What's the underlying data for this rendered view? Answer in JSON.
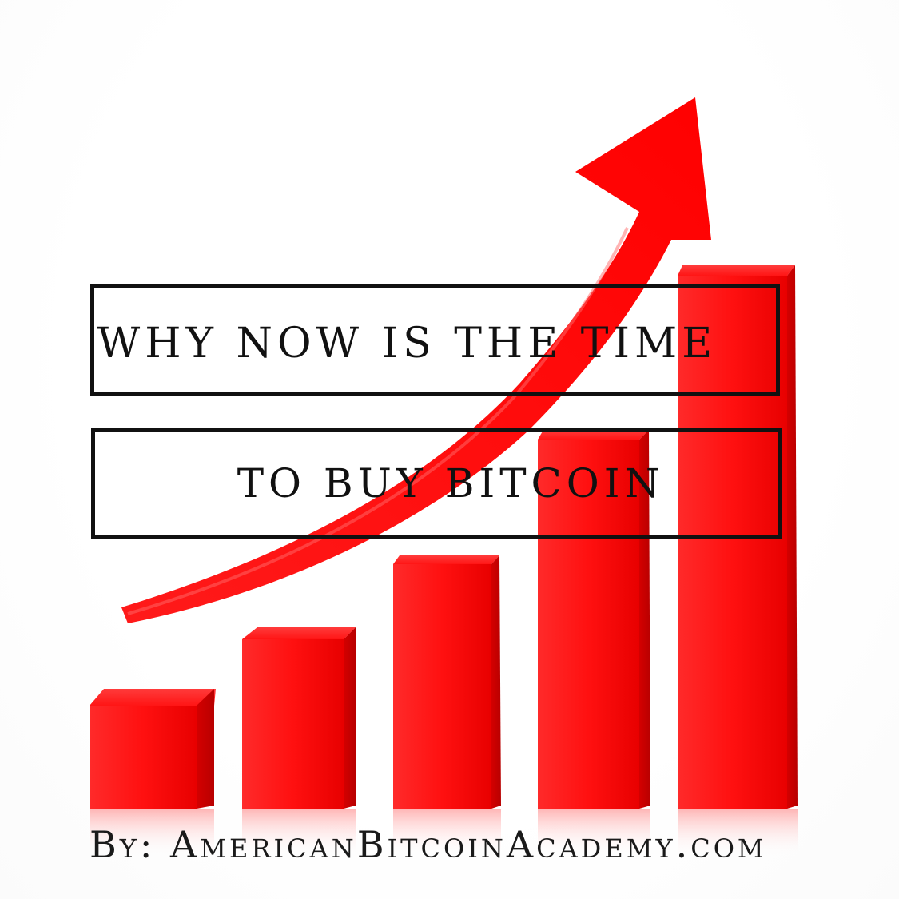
{
  "headline": {
    "line1": "WHY NOW IS THE TIME",
    "line2": "TO BUY BITCOIN"
  },
  "byline": "By: AmericanBitcoinAcademy.com",
  "colors": {
    "bar_red": "#ff1a1a",
    "bar_dark": "#d90000",
    "arrow_red": "#ff0d0d",
    "text": "#111111",
    "background": "#ffffff"
  },
  "graphic": {
    "type": "rising-bar-chart-with-arrow",
    "bar_count": 5,
    "relative_heights": [
      0.22,
      0.34,
      0.47,
      0.67,
      0.96
    ]
  }
}
